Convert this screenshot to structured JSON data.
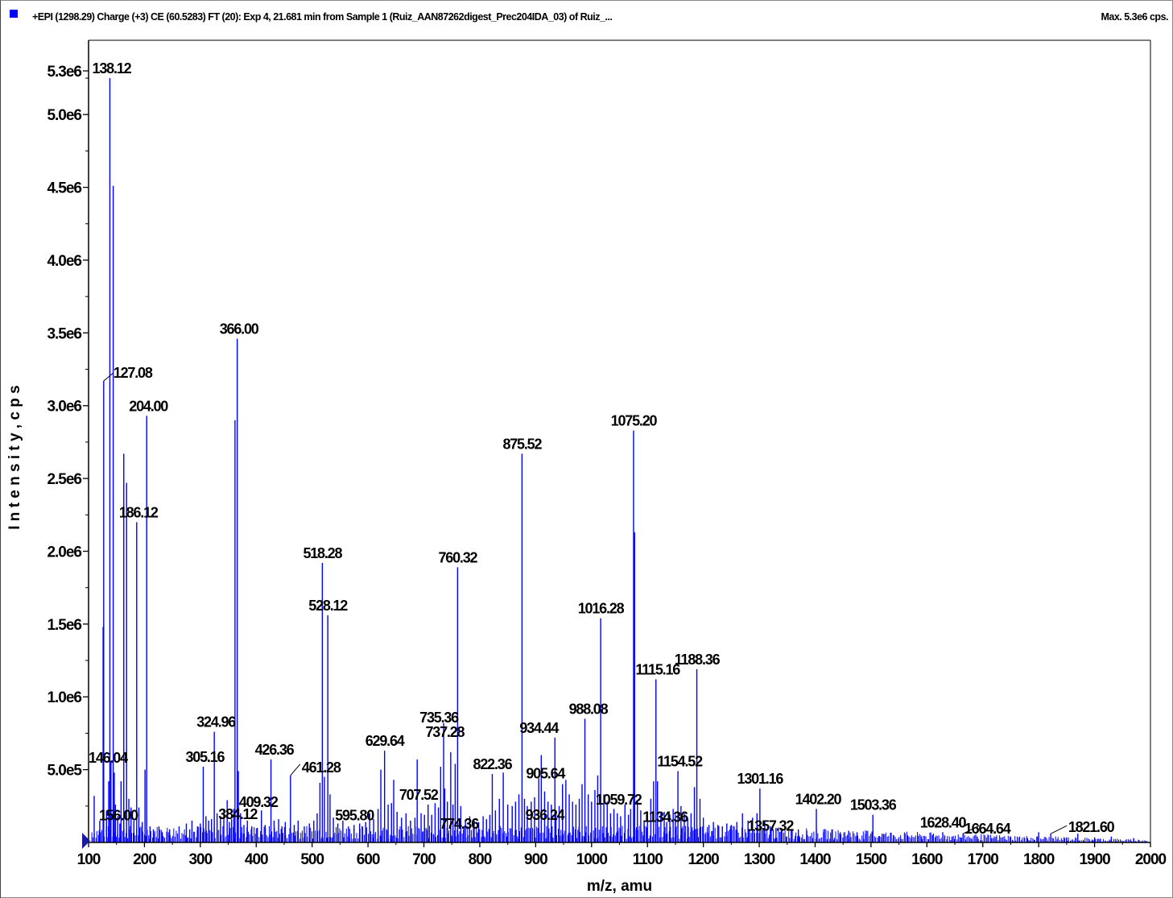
{
  "header": {
    "title": "+EPI (1298.29) Charge (+3) CE (60.5283) FT (20): Exp 4, 21.681 min from Sample 1 (Ruiz_AAN87262digest_Prec204IDA_03) of Ruiz_...",
    "max_label": "Max. 5.3e6 cps."
  },
  "colors": {
    "spectrum": "#0000ff",
    "axis": "#000000",
    "background": "#ffffff"
  },
  "chart_data": {
    "type": "bar",
    "xlabel": "m/z, amu",
    "ylabel": "I n t e n s i t y ,  c p s",
    "xlim": [
      100,
      2000
    ],
    "ylim": [
      0,
      5300000
    ],
    "x_ticks": [
      "100",
      "200",
      "300",
      "400",
      "500",
      "600",
      "700",
      "800",
      "900",
      "1000",
      "1100",
      "1200",
      "1300",
      "1400",
      "1500",
      "1600",
      "1700",
      "1800",
      "1900",
      "2000"
    ],
    "y_ticks": [
      {
        "value": 500000,
        "label": "5.0e5"
      },
      {
        "value": 1000000,
        "label": "1.0e6"
      },
      {
        "value": 1500000,
        "label": "1.5e6"
      },
      {
        "value": 2000000,
        "label": "2.0e6"
      },
      {
        "value": 2500000,
        "label": "2.5e6"
      },
      {
        "value": 3000000,
        "label": "3.0e6"
      },
      {
        "value": 3500000,
        "label": "3.5e6"
      },
      {
        "value": 4000000,
        "label": "4.0e6"
      },
      {
        "value": 4500000,
        "label": "4.5e6"
      },
      {
        "value": 5000000,
        "label": "5.0e6"
      },
      {
        "value": 5300000,
        "label": "5.3e6"
      }
    ],
    "peaks": [
      {
        "mz": 110.07,
        "y": 320000
      },
      {
        "mz": 120.08,
        "y": 150000
      },
      {
        "mz": 126.05,
        "y": 1480000
      },
      {
        "mz": 127.08,
        "y": 3170000
      },
      {
        "mz": 132.1,
        "y": 220000
      },
      {
        "mz": 136.05,
        "y": 420000
      },
      {
        "mz": 138.12,
        "y": 5250000
      },
      {
        "mz": 140.1,
        "y": 560000
      },
      {
        "mz": 144.1,
        "y": 4510000
      },
      {
        "mz": 146.04,
        "y": 480000
      },
      {
        "mz": 148.1,
        "y": 260000
      },
      {
        "mz": 152.0,
        "y": 180000
      },
      {
        "mz": 156.0,
        "y": 130000
      },
      {
        "mz": 158.1,
        "y": 420000
      },
      {
        "mz": 163.0,
        "y": 2670000
      },
      {
        "mz": 168.1,
        "y": 2470000
      },
      {
        "mz": 172.1,
        "y": 300000
      },
      {
        "mz": 176.0,
        "y": 240000
      },
      {
        "mz": 181.0,
        "y": 150000
      },
      {
        "mz": 186.12,
        "y": 2200000
      },
      {
        "mz": 190.0,
        "y": 240000
      },
      {
        "mz": 196.0,
        "y": 140000
      },
      {
        "mz": 201.0,
        "y": 500000
      },
      {
        "mz": 204.0,
        "y": 2930000
      },
      {
        "mz": 210.0,
        "y": 110000
      },
      {
        "mz": 216.0,
        "y": 90000
      },
      {
        "mz": 226.0,
        "y": 110000
      },
      {
        "mz": 232.0,
        "y": 70000
      },
      {
        "mz": 245.0,
        "y": 90000
      },
      {
        "mz": 262.0,
        "y": 110000
      },
      {
        "mz": 275.0,
        "y": 130000
      },
      {
        "mz": 281.0,
        "y": 90000
      },
      {
        "mz": 285.0,
        "y": 150000
      },
      {
        "mz": 295.0,
        "y": 110000
      },
      {
        "mz": 300.0,
        "y": 130000
      },
      {
        "mz": 305.16,
        "y": 520000
      },
      {
        "mz": 310.0,
        "y": 180000
      },
      {
        "mz": 315.0,
        "y": 150000
      },
      {
        "mz": 320.0,
        "y": 160000
      },
      {
        "mz": 324.96,
        "y": 760000
      },
      {
        "mz": 330.0,
        "y": 200000
      },
      {
        "mz": 336.0,
        "y": 170000
      },
      {
        "mz": 342.0,
        "y": 230000
      },
      {
        "mz": 348.0,
        "y": 290000
      },
      {
        "mz": 352.0,
        "y": 140000
      },
      {
        "mz": 356.0,
        "y": 160000
      },
      {
        "mz": 360.0,
        "y": 230000
      },
      {
        "mz": 362.0,
        "y": 2900000
      },
      {
        "mz": 366.0,
        "y": 3460000
      },
      {
        "mz": 368.0,
        "y": 490000
      },
      {
        "mz": 372.0,
        "y": 200000
      },
      {
        "mz": 378.0,
        "y": 120000
      },
      {
        "mz": 384.12,
        "y": 150000
      },
      {
        "mz": 392.0,
        "y": 110000
      },
      {
        "mz": 402.0,
        "y": 100000
      },
      {
        "mz": 409.32,
        "y": 220000
      },
      {
        "mz": 416.0,
        "y": 120000
      },
      {
        "mz": 426.36,
        "y": 570000
      },
      {
        "mz": 432.0,
        "y": 150000
      },
      {
        "mz": 440.0,
        "y": 160000
      },
      {
        "mz": 446.0,
        "y": 110000
      },
      {
        "mz": 452.0,
        "y": 140000
      },
      {
        "mz": 461.28,
        "y": 460000
      },
      {
        "mz": 468.0,
        "y": 120000
      },
      {
        "mz": 475.0,
        "y": 150000
      },
      {
        "mz": 486.0,
        "y": 110000
      },
      {
        "mz": 495.0,
        "y": 130000
      },
      {
        "mz": 503.0,
        "y": 150000
      },
      {
        "mz": 509.0,
        "y": 200000
      },
      {
        "mz": 514.0,
        "y": 410000
      },
      {
        "mz": 518.28,
        "y": 1920000
      },
      {
        "mz": 522.0,
        "y": 450000
      },
      {
        "mz": 528.12,
        "y": 1560000
      },
      {
        "mz": 532.0,
        "y": 330000
      },
      {
        "mz": 538.0,
        "y": 170000
      },
      {
        "mz": 546.0,
        "y": 130000
      },
      {
        "mz": 555.0,
        "y": 150000
      },
      {
        "mz": 565.0,
        "y": 110000
      },
      {
        "mz": 575.0,
        "y": 120000
      },
      {
        "mz": 585.0,
        "y": 130000
      },
      {
        "mz": 595.8,
        "y": 140000
      },
      {
        "mz": 603.0,
        "y": 200000
      },
      {
        "mz": 610.0,
        "y": 160000
      },
      {
        "mz": 618.0,
        "y": 230000
      },
      {
        "mz": 623.0,
        "y": 500000
      },
      {
        "mz": 629.64,
        "y": 630000
      },
      {
        "mz": 636.0,
        "y": 260000
      },
      {
        "mz": 642.0,
        "y": 270000
      },
      {
        "mz": 646.0,
        "y": 430000
      },
      {
        "mz": 652.0,
        "y": 210000
      },
      {
        "mz": 660.0,
        "y": 170000
      },
      {
        "mz": 668.0,
        "y": 200000
      },
      {
        "mz": 676.0,
        "y": 150000
      },
      {
        "mz": 684.0,
        "y": 170000
      },
      {
        "mz": 688.0,
        "y": 570000
      },
      {
        "mz": 695.0,
        "y": 200000
      },
      {
        "mz": 701.0,
        "y": 190000
      },
      {
        "mz": 707.52,
        "y": 260000
      },
      {
        "mz": 714.0,
        "y": 190000
      },
      {
        "mz": 720.0,
        "y": 270000
      },
      {
        "mz": 726.0,
        "y": 240000
      },
      {
        "mz": 730.0,
        "y": 520000
      },
      {
        "mz": 735.36,
        "y": 820000
      },
      {
        "mz": 737.28,
        "y": 370000
      },
      {
        "mz": 742.0,
        "y": 280000
      },
      {
        "mz": 748.0,
        "y": 620000
      },
      {
        "mz": 752.0,
        "y": 260000
      },
      {
        "mz": 756.0,
        "y": 540000
      },
      {
        "mz": 760.32,
        "y": 1890000
      },
      {
        "mz": 766.0,
        "y": 250000
      },
      {
        "mz": 774.36,
        "y": 150000
      },
      {
        "mz": 782.0,
        "y": 180000
      },
      {
        "mz": 790.0,
        "y": 150000
      },
      {
        "mz": 798.0,
        "y": 140000
      },
      {
        "mz": 806.0,
        "y": 180000
      },
      {
        "mz": 812.0,
        "y": 160000
      },
      {
        "mz": 818.0,
        "y": 190000
      },
      {
        "mz": 822.36,
        "y": 470000
      },
      {
        "mz": 828.0,
        "y": 220000
      },
      {
        "mz": 835.0,
        "y": 300000
      },
      {
        "mz": 842.0,
        "y": 480000
      },
      {
        "mz": 850.0,
        "y": 260000
      },
      {
        "mz": 858.0,
        "y": 250000
      },
      {
        "mz": 864.0,
        "y": 280000
      },
      {
        "mz": 870.0,
        "y": 330000
      },
      {
        "mz": 875.52,
        "y": 2670000
      },
      {
        "mz": 880.0,
        "y": 300000
      },
      {
        "mz": 885.0,
        "y": 250000
      },
      {
        "mz": 892.0,
        "y": 280000
      },
      {
        "mz": 898.0,
        "y": 310000
      },
      {
        "mz": 905.64,
        "y": 440000
      },
      {
        "mz": 910.0,
        "y": 600000
      },
      {
        "mz": 916.0,
        "y": 350000
      },
      {
        "mz": 922.0,
        "y": 280000
      },
      {
        "mz": 928.0,
        "y": 260000
      },
      {
        "mz": 934.44,
        "y": 720000
      },
      {
        "mz": 936.24,
        "y": 200000
      },
      {
        "mz": 942.0,
        "y": 250000
      },
      {
        "mz": 948.0,
        "y": 400000
      },
      {
        "mz": 954.0,
        "y": 430000
      },
      {
        "mz": 960.0,
        "y": 330000
      },
      {
        "mz": 966.0,
        "y": 280000
      },
      {
        "mz": 972.0,
        "y": 260000
      },
      {
        "mz": 978.0,
        "y": 300000
      },
      {
        "mz": 983.0,
        "y": 400000
      },
      {
        "mz": 988.08,
        "y": 850000
      },
      {
        "mz": 994.0,
        "y": 330000
      },
      {
        "mz": 1000.0,
        "y": 280000
      },
      {
        "mz": 1006.0,
        "y": 360000
      },
      {
        "mz": 1011.0,
        "y": 460000
      },
      {
        "mz": 1016.28,
        "y": 1540000
      },
      {
        "mz": 1022.0,
        "y": 330000
      },
      {
        "mz": 1028.0,
        "y": 280000
      },
      {
        "mz": 1034.0,
        "y": 200000
      },
      {
        "mz": 1040.0,
        "y": 230000
      },
      {
        "mz": 1046.0,
        "y": 200000
      },
      {
        "mz": 1052.0,
        "y": 180000
      },
      {
        "mz": 1059.72,
        "y": 260000
      },
      {
        "mz": 1066.0,
        "y": 190000
      },
      {
        "mz": 1070.0,
        "y": 230000
      },
      {
        "mz": 1075.2,
        "y": 2830000
      },
      {
        "mz": 1077.0,
        "y": 2130000
      },
      {
        "mz": 1082.0,
        "y": 280000
      },
      {
        "mz": 1088.0,
        "y": 220000
      },
      {
        "mz": 1094.0,
        "y": 150000
      },
      {
        "mz": 1100.0,
        "y": 180000
      },
      {
        "mz": 1106.0,
        "y": 300000
      },
      {
        "mz": 1111.0,
        "y": 420000
      },
      {
        "mz": 1115.16,
        "y": 1120000
      },
      {
        "mz": 1118.0,
        "y": 420000
      },
      {
        "mz": 1124.0,
        "y": 200000
      },
      {
        "mz": 1130.0,
        "y": 210000
      },
      {
        "mz": 1134.36,
        "y": 140000
      },
      {
        "mz": 1140.0,
        "y": 190000
      },
      {
        "mz": 1146.0,
        "y": 230000
      },
      {
        "mz": 1150.0,
        "y": 190000
      },
      {
        "mz": 1154.52,
        "y": 490000
      },
      {
        "mz": 1160.0,
        "y": 250000
      },
      {
        "mz": 1166.0,
        "y": 200000
      },
      {
        "mz": 1172.0,
        "y": 170000
      },
      {
        "mz": 1178.0,
        "y": 200000
      },
      {
        "mz": 1184.0,
        "y": 380000
      },
      {
        "mz": 1188.36,
        "y": 1190000
      },
      {
        "mz": 1194.0,
        "y": 300000
      },
      {
        "mz": 1200.0,
        "y": 170000
      },
      {
        "mz": 1210.0,
        "y": 120000
      },
      {
        "mz": 1218.0,
        "y": 140000
      },
      {
        "mz": 1226.0,
        "y": 120000
      },
      {
        "mz": 1234.0,
        "y": 110000
      },
      {
        "mz": 1242.0,
        "y": 130000
      },
      {
        "mz": 1250.0,
        "y": 120000
      },
      {
        "mz": 1260.0,
        "y": 140000
      },
      {
        "mz": 1270.0,
        "y": 200000
      },
      {
        "mz": 1280.0,
        "y": 150000
      },
      {
        "mz": 1288.0,
        "y": 170000
      },
      {
        "mz": 1296.0,
        "y": 200000
      },
      {
        "mz": 1301.16,
        "y": 370000
      },
      {
        "mz": 1310.0,
        "y": 140000
      },
      {
        "mz": 1320.0,
        "y": 110000
      },
      {
        "mz": 1330.0,
        "y": 100000
      },
      {
        "mz": 1340.0,
        "y": 90000
      },
      {
        "mz": 1357.32,
        "y": 80000
      },
      {
        "mz": 1370.0,
        "y": 90000
      },
      {
        "mz": 1385.0,
        "y": 80000
      },
      {
        "mz": 1402.2,
        "y": 230000
      },
      {
        "mz": 1415.0,
        "y": 70000
      },
      {
        "mz": 1430.0,
        "y": 90000
      },
      {
        "mz": 1445.0,
        "y": 70000
      },
      {
        "mz": 1460.0,
        "y": 80000
      },
      {
        "mz": 1475.0,
        "y": 70000
      },
      {
        "mz": 1490.0,
        "y": 60000
      },
      {
        "mz": 1503.36,
        "y": 190000
      },
      {
        "mz": 1520.0,
        "y": 60000
      },
      {
        "mz": 1540.0,
        "y": 50000
      },
      {
        "mz": 1565.0,
        "y": 50000
      },
      {
        "mz": 1590.0,
        "y": 40000
      },
      {
        "mz": 1610.0,
        "y": 50000
      },
      {
        "mz": 1628.4,
        "y": 70000
      },
      {
        "mz": 1645.0,
        "y": 40000
      },
      {
        "mz": 1664.64,
        "y": 60000
      },
      {
        "mz": 1690.0,
        "y": 40000
      },
      {
        "mz": 1720.0,
        "y": 30000
      },
      {
        "mz": 1750.0,
        "y": 35000
      },
      {
        "mz": 1780.0,
        "y": 30000
      },
      {
        "mz": 1800.0,
        "y": 70000
      },
      {
        "mz": 1821.6,
        "y": 60000
      },
      {
        "mz": 1850.0,
        "y": 35000
      },
      {
        "mz": 1870.0,
        "y": 60000
      },
      {
        "mz": 1900.0,
        "y": 35000
      },
      {
        "mz": 1930.0,
        "y": 40000
      },
      {
        "mz": 1970.0,
        "y": 30000
      }
    ],
    "labels": [
      {
        "text": "138.12",
        "mz": 138.12,
        "y": 5250000
      },
      {
        "text": "127.08",
        "mz": 127.08,
        "y": 3170000
      },
      {
        "text": "204.00",
        "mz": 204.0,
        "y": 2930000
      },
      {
        "text": "186.12",
        "mz": 186.12,
        "y": 2200000
      },
      {
        "text": "146.04",
        "mz": 146.04,
        "y": 480000
      },
      {
        "text": "156.00",
        "mz": 156.0,
        "y": 130000
      },
      {
        "text": "366.00",
        "mz": 366.0,
        "y": 3460000
      },
      {
        "text": "324.96",
        "mz": 324.96,
        "y": 760000
      },
      {
        "text": "305.16",
        "mz": 305.16,
        "y": 520000
      },
      {
        "text": "384.12",
        "mz": 384.12,
        "y": 150000
      },
      {
        "text": "409.32",
        "mz": 409.32,
        "y": 220000
      },
      {
        "text": "426.36",
        "mz": 426.36,
        "y": 570000
      },
      {
        "text": "461.28",
        "mz": 461.28,
        "y": 460000
      },
      {
        "text": "518.28",
        "mz": 518.28,
        "y": 1920000
      },
      {
        "text": "528.12",
        "mz": 528.12,
        "y": 1560000
      },
      {
        "text": "595.80",
        "mz": 595.8,
        "y": 140000
      },
      {
        "text": "629.64",
        "mz": 629.64,
        "y": 630000
      },
      {
        "text": "707.52",
        "mz": 707.52,
        "y": 260000
      },
      {
        "text": "737.28",
        "mz": 737.28,
        "y": 370000
      },
      {
        "text": "735.36",
        "mz": 735.36,
        "y": 820000
      },
      {
        "text": "760.32",
        "mz": 760.32,
        "y": 1890000
      },
      {
        "text": "774.36",
        "mz": 774.36,
        "y": 150000
      },
      {
        "text": "822.36",
        "mz": 822.36,
        "y": 470000
      },
      {
        "text": "875.52",
        "mz": 875.52,
        "y": 2670000
      },
      {
        "text": "934.44",
        "mz": 934.44,
        "y": 720000
      },
      {
        "text": "905.64",
        "mz": 905.64,
        "y": 440000
      },
      {
        "text": "936.24",
        "mz": 936.24,
        "y": 200000
      },
      {
        "text": "988.08",
        "mz": 988.08,
        "y": 850000
      },
      {
        "text": "1016.28",
        "mz": 1016.28,
        "y": 1540000
      },
      {
        "text": "1075.20",
        "mz": 1075.2,
        "y": 2830000
      },
      {
        "text": "1059.72",
        "mz": 1059.72,
        "y": 260000
      },
      {
        "text": "1115.16",
        "mz": 1115.16,
        "y": 1120000
      },
      {
        "text": "1134.36",
        "mz": 1134.36,
        "y": 140000
      },
      {
        "text": "1154.52",
        "mz": 1154.52,
        "y": 490000
      },
      {
        "text": "1188.36",
        "mz": 1188.36,
        "y": 1190000
      },
      {
        "text": "1301.16",
        "mz": 1301.16,
        "y": 370000
      },
      {
        "text": "1357.32",
        "mz": 1357.32,
        "y": 80000
      },
      {
        "text": "1402.20",
        "mz": 1402.2,
        "y": 230000
      },
      {
        "text": "1503.36",
        "mz": 1503.36,
        "y": 190000
      },
      {
        "text": "1628.40",
        "mz": 1628.4,
        "y": 70000
      },
      {
        "text": "1664.64",
        "mz": 1664.64,
        "y": 60000
      },
      {
        "text": "1821.60",
        "mz": 1821.6,
        "y": 60000
      }
    ]
  }
}
